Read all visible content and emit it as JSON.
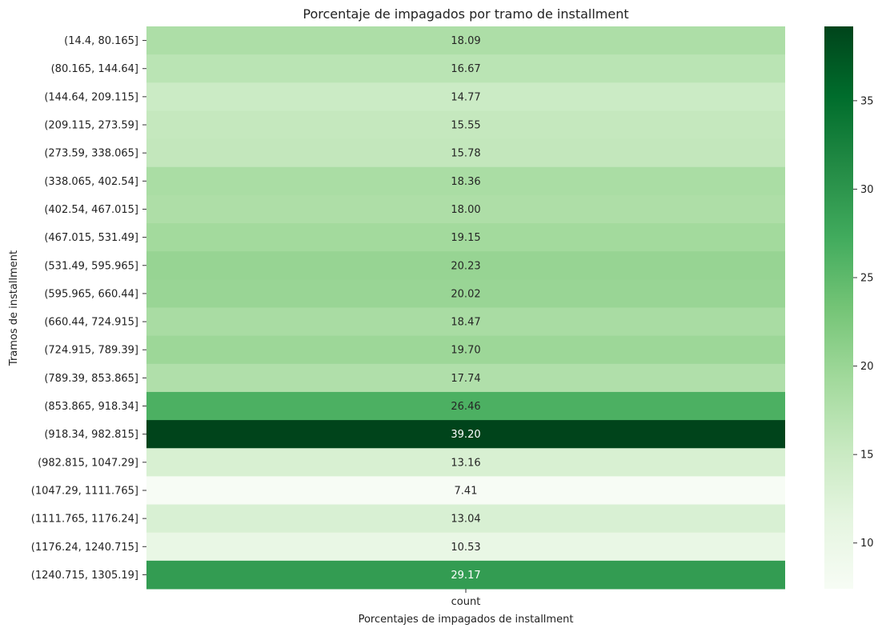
{
  "chart_data": {
    "type": "heatmap",
    "title": "Porcentaje de impagados por tramo de installment",
    "xlabel": "Porcentajes de impagados de installment",
    "ylabel": "Tramos de installment",
    "columns": [
      "count"
    ],
    "rows": [
      "(14.4, 80.165]",
      "(80.165, 144.64]",
      "(144.64, 209.115]",
      "(209.115, 273.59]",
      "(273.59, 338.065]",
      "(338.065, 402.54]",
      "(402.54, 467.015]",
      "(467.015, 531.49]",
      "(531.49, 595.965]",
      "(595.965, 660.44]",
      "(660.44, 724.915]",
      "(724.915, 789.39]",
      "(789.39, 853.865]",
      "(853.865, 918.34]",
      "(918.34, 982.815]",
      "(982.815, 1047.29]",
      "(1047.29, 1111.765]",
      "(1111.765, 1176.24]",
      "(1176.24, 1240.715]",
      "(1240.715, 1305.19]"
    ],
    "values": [
      18.09,
      16.67,
      14.77,
      15.55,
      15.78,
      18.36,
      18.0,
      19.15,
      20.23,
      20.02,
      18.47,
      19.7,
      17.74,
      26.46,
      39.2,
      13.16,
      7.41,
      13.04,
      10.53,
      29.17
    ],
    "value_format": "2f",
    "colormap": "Greens",
    "color_range": [
      7.41,
      39.2
    ],
    "colorbar_ticks": [
      10,
      15,
      20,
      25,
      30,
      35
    ],
    "colorbar_colors": [
      "#f7fcf5",
      "#e5f5e0",
      "#c7e9c0",
      "#a1d99b",
      "#74c476",
      "#41ab5d",
      "#238b45",
      "#006d2c",
      "#00441b"
    ]
  }
}
